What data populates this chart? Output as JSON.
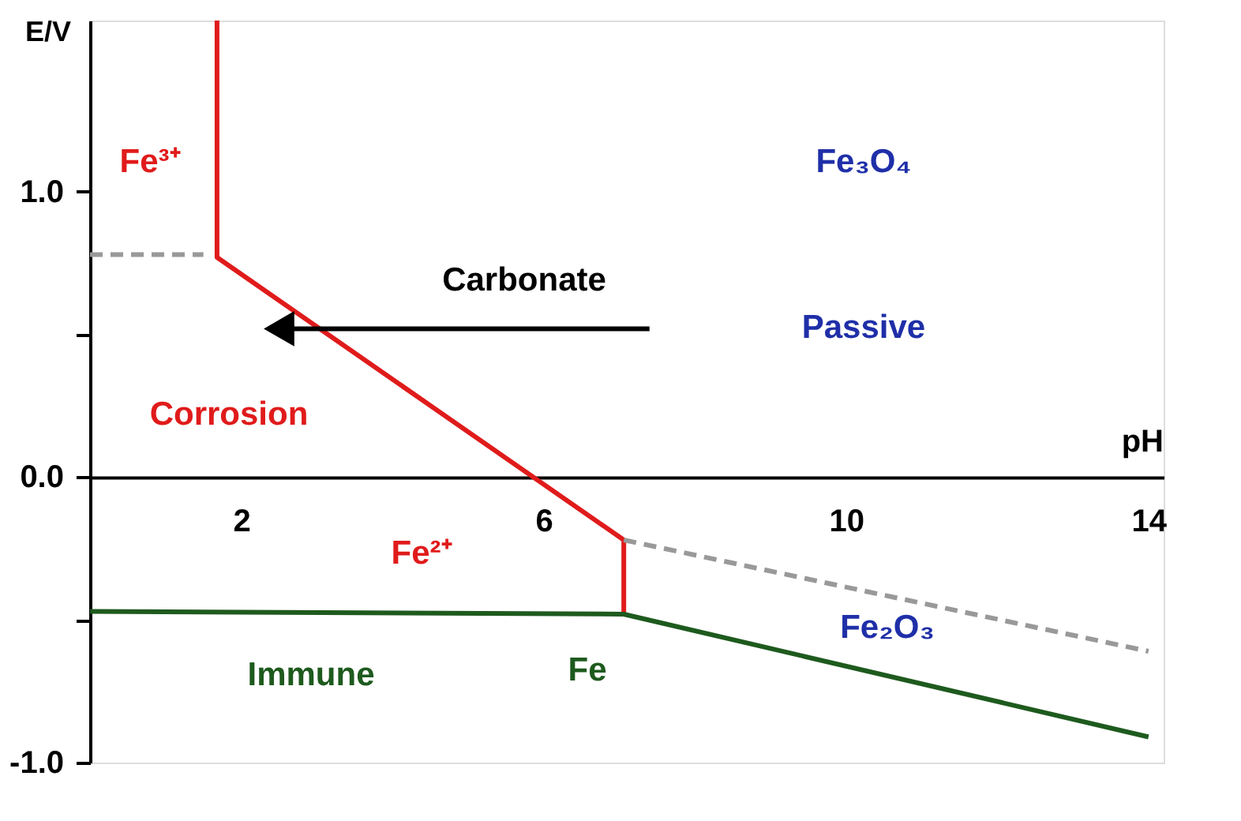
{
  "chart_data": {
    "type": "line",
    "xlabel": "pH",
    "ylabel": "E/V",
    "xlim": [
      0,
      14.2
    ],
    "ylim": [
      -1.0,
      1.6
    ],
    "xticks": [
      2,
      6,
      10,
      14
    ],
    "yticks": [
      {
        "value": 1.0,
        "label": "1.0"
      },
      {
        "value": 0.5,
        "label": null
      },
      {
        "value": 0.0,
        "label": "0.0"
      },
      {
        "value": -0.5,
        "label": null
      },
      {
        "value": -1.0,
        "label": "-1.0"
      }
    ],
    "grid": false,
    "marker": "none",
    "series": [
      {
        "color": "#e01b1b",
        "x": [
          1.68,
          1.68,
          7.06,
          7.06
        ],
        "values": [
          1.6,
          0.77,
          -0.22,
          -0.48
        ],
        "line_style": "solid"
      },
      {
        "color": "#1e5a1e",
        "x": [
          0,
          7.06,
          14
        ],
        "values": [
          -0.47,
          -0.48,
          -0.91
        ],
        "line_style": "solid"
      },
      {
        "color": "#999999",
        "x": [
          0,
          1.5
        ],
        "values": [
          0.78,
          0.78
        ],
        "line_style": "dashed"
      },
      {
        "color": "#999999",
        "x": [
          7.06,
          14
        ],
        "values": [
          -0.22,
          -0.61
        ],
        "line_style": "dashed"
      },
      {
        "color": "#000000",
        "x": [
          7.4,
          2.5
        ],
        "values": [
          0.52,
          0.52
        ],
        "line_style": "solid",
        "marker": "triangle"
      }
    ],
    "annotations": [
      "Fe³⁺",
      "Fe₃O₄",
      "Carbonate",
      "Passive",
      "Corrosion",
      "Fe²⁺",
      "Fe₂O₃",
      "Immune",
      "Fe"
    ]
  }
}
